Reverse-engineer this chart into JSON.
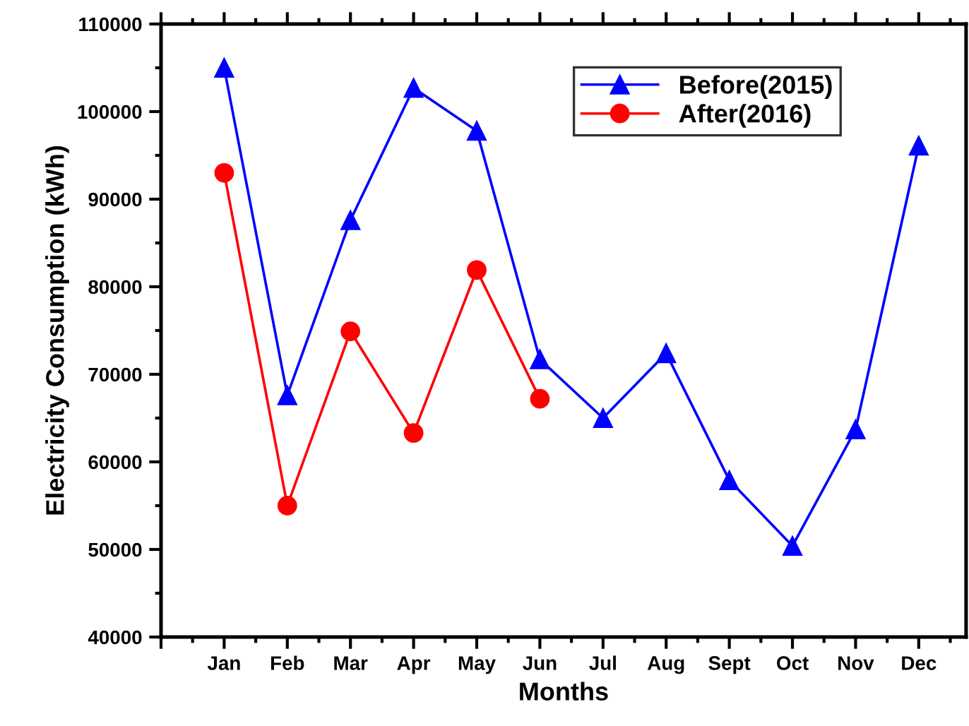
{
  "chart_data": {
    "type": "line",
    "xlabel": "Months",
    "ylabel": "Electricity Consumption (kWh)",
    "categories": [
      "Jan",
      "Feb",
      "Mar",
      "Apr",
      "May",
      "Jun",
      "Jul",
      "Aug",
      "Sept",
      "Oct",
      "Nov",
      "Dec"
    ],
    "series": [
      {
        "name": "Before(2015)",
        "color": "#0000ff",
        "marker": "triangle",
        "values": [
          105000,
          67600,
          87600,
          102700,
          97800,
          71700,
          65000,
          72400,
          57900,
          50400,
          63700,
          96100
        ]
      },
      {
        "name": "After(2016)",
        "color": "#ff0000",
        "marker": "circle",
        "values": [
          93000,
          55000,
          74900,
          63300,
          81900,
          67200,
          null,
          null,
          null,
          null,
          null,
          null
        ]
      }
    ],
    "ylim": [
      40000,
      110000
    ],
    "yticks": [
      40000,
      50000,
      60000,
      70000,
      80000,
      90000,
      100000,
      110000
    ],
    "grid": false,
    "legend": "top right",
    "line_style": "solid"
  }
}
